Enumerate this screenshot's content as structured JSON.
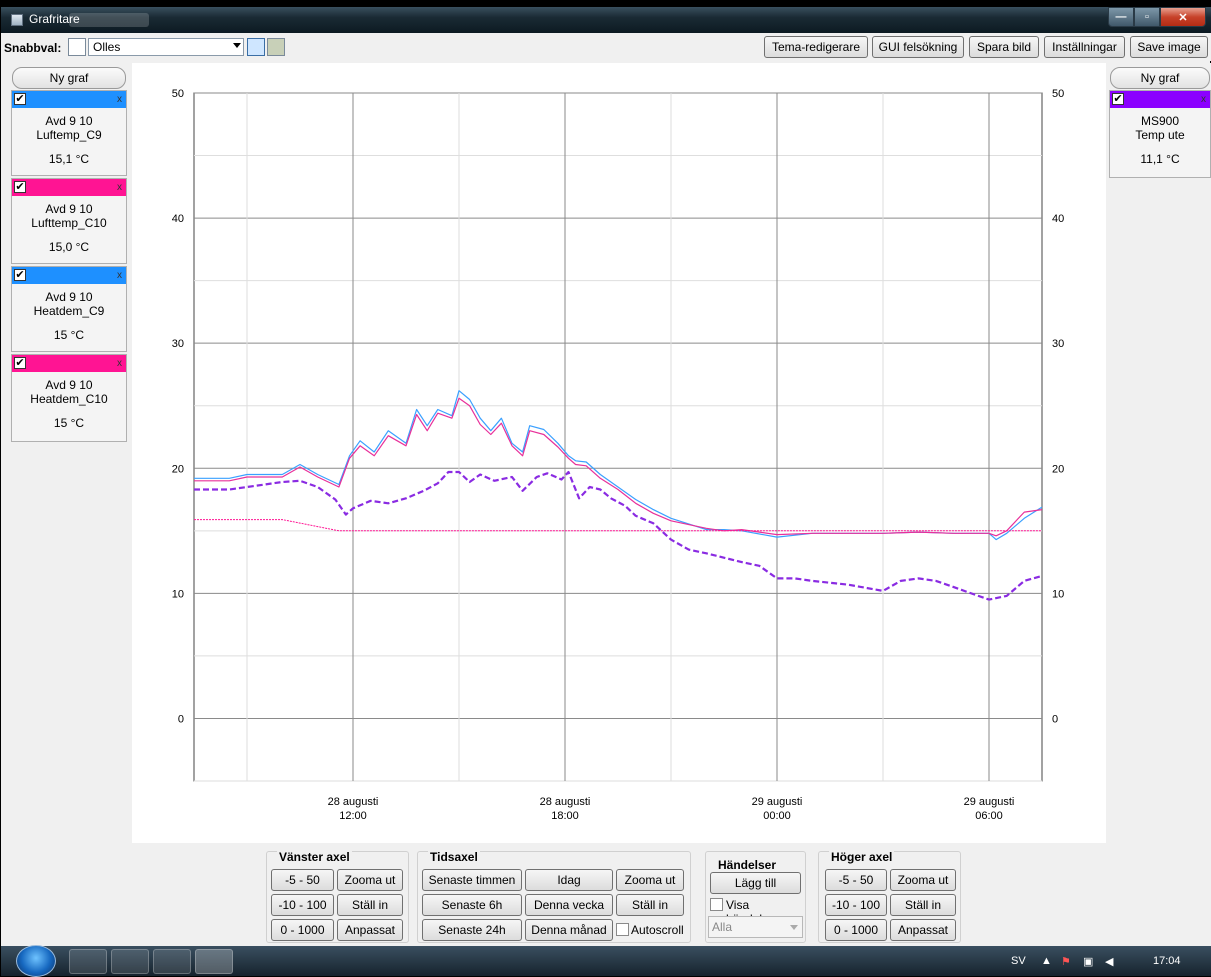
{
  "window": {
    "title": "Grafritare"
  },
  "toolbar": {
    "quick_label": "Snabbval:",
    "quick_selected": "Olles",
    "buttons": [
      "Tema-redigerare",
      "GUI felsökning",
      "Spara bild",
      "Inställningar",
      "Save image"
    ]
  },
  "left_panel": {
    "new_graph": "Ny graf",
    "cards": [
      {
        "line1": "Avd 9 10",
        "line2": "Luftemp_C9",
        "value": "15,1 °C",
        "color": "#1e90ff"
      },
      {
        "line1": "Avd 9 10",
        "line2": "Lufttemp_C10",
        "value": "15,0 °C",
        "color": "#ff1493"
      },
      {
        "line1": "Avd 9 10",
        "line2": "Heatdem_C9",
        "value": "15 °C",
        "color": "#1e90ff"
      },
      {
        "line1": "Avd 9 10",
        "line2": "Heatdem_C10",
        "value": "15 °C",
        "color": "#ff1493"
      }
    ]
  },
  "right_panel": {
    "new_graph": "Ny graf",
    "cards": [
      {
        "line1": "MS900",
        "line2": "Temp ute",
        "value": "11,1 °C",
        "color": "#8b00ff"
      }
    ]
  },
  "chart_data": {
    "type": "line",
    "ylim": [
      -5,
      50
    ],
    "yticks": [
      0,
      10,
      20,
      30,
      40,
      50
    ],
    "xlim_hours": [
      7.5,
      31.5
    ],
    "xticks": [
      {
        "h": 12,
        "date": "28 augusti",
        "time": "12:00"
      },
      {
        "h": 18,
        "date": "28 augusti",
        "time": "18:00"
      },
      {
        "h": 24,
        "date": "29 augusti",
        "time": "00:00"
      },
      {
        "h": 30,
        "date": "29 augusti",
        "time": "06:00"
      }
    ],
    "grid": true,
    "series": [
      {
        "color": "#3aa0ff",
        "dash": false,
        "points": [
          [
            7.5,
            19.2
          ],
          [
            8.5,
            19.2
          ],
          [
            9,
            19.5
          ],
          [
            10,
            19.5
          ],
          [
            10.5,
            20.3
          ],
          [
            11,
            19.5
          ],
          [
            11.6,
            18.7
          ],
          [
            11.9,
            21
          ],
          [
            12.2,
            22.2
          ],
          [
            12.6,
            21.3
          ],
          [
            13,
            23
          ],
          [
            13.5,
            22
          ],
          [
            13.8,
            24.7
          ],
          [
            14.1,
            23.4
          ],
          [
            14.4,
            24.7
          ],
          [
            14.8,
            24.2
          ],
          [
            15,
            26.2
          ],
          [
            15.3,
            25.5
          ],
          [
            15.6,
            24
          ],
          [
            15.9,
            23
          ],
          [
            16.2,
            24
          ],
          [
            16.5,
            22
          ],
          [
            16.8,
            21.3
          ],
          [
            17,
            23.4
          ],
          [
            17.4,
            23.1
          ],
          [
            17.8,
            22
          ],
          [
            18.1,
            21
          ],
          [
            18.3,
            20.6
          ],
          [
            18.6,
            20.5
          ],
          [
            19,
            19.5
          ],
          [
            19.5,
            18.5
          ],
          [
            20,
            17.5
          ],
          [
            20.5,
            16.7
          ],
          [
            21,
            16
          ],
          [
            22,
            15.1
          ],
          [
            22.5,
            15.1
          ],
          [
            23,
            15
          ],
          [
            24,
            14.5
          ],
          [
            25,
            14.8
          ],
          [
            26,
            14.8
          ],
          [
            27,
            14.8
          ],
          [
            28,
            14.9
          ],
          [
            29,
            14.8
          ],
          [
            30,
            14.8
          ],
          [
            30.2,
            14.3
          ],
          [
            30.5,
            14.8
          ],
          [
            31,
            16
          ],
          [
            31.5,
            16.9
          ]
        ]
      },
      {
        "color": "#e8309a",
        "dash": false,
        "points": [
          [
            7.5,
            19
          ],
          [
            8.5,
            19
          ],
          [
            9,
            19.3
          ],
          [
            10,
            19.3
          ],
          [
            10.5,
            20.1
          ],
          [
            11,
            19.3
          ],
          [
            11.6,
            18.5
          ],
          [
            11.9,
            20.8
          ],
          [
            12.2,
            21.8
          ],
          [
            12.6,
            21
          ],
          [
            13,
            22.6
          ],
          [
            13.5,
            21.8
          ],
          [
            13.8,
            24.3
          ],
          [
            14.1,
            23
          ],
          [
            14.4,
            24.4
          ],
          [
            14.8,
            24
          ],
          [
            15,
            25.6
          ],
          [
            15.3,
            25
          ],
          [
            15.6,
            23.5
          ],
          [
            15.9,
            22.7
          ],
          [
            16.2,
            23.6
          ],
          [
            16.5,
            21.8
          ],
          [
            16.8,
            21
          ],
          [
            17,
            23
          ],
          [
            17.4,
            22.7
          ],
          [
            17.8,
            21.7
          ],
          [
            18.1,
            20.8
          ],
          [
            18.3,
            20.3
          ],
          [
            18.6,
            20.2
          ],
          [
            19,
            19.2
          ],
          [
            19.5,
            18.3
          ],
          [
            20,
            17.2
          ],
          [
            20.5,
            16.4
          ],
          [
            21,
            15.8
          ],
          [
            22,
            15.2
          ],
          [
            22.5,
            15
          ],
          [
            23,
            15.1
          ],
          [
            24,
            14.7
          ],
          [
            25,
            14.8
          ],
          [
            26,
            14.8
          ],
          [
            27,
            14.8
          ],
          [
            28,
            14.9
          ],
          [
            29,
            14.8
          ],
          [
            30,
            14.8
          ],
          [
            30.2,
            14.6
          ],
          [
            30.5,
            15
          ],
          [
            31,
            16.5
          ],
          [
            31.5,
            16.7
          ]
        ]
      },
      {
        "color": "#ff1493",
        "dash": "thin",
        "points": [
          [
            7.5,
            15.9
          ],
          [
            10,
            15.9
          ],
          [
            11.6,
            15
          ],
          [
            31.5,
            15
          ]
        ]
      },
      {
        "color": "#8a2be2",
        "dash": "thick",
        "points": [
          [
            7.5,
            18.3
          ],
          [
            8.5,
            18.3
          ],
          [
            9,
            18.5
          ],
          [
            10,
            18.9
          ],
          [
            10.5,
            19
          ],
          [
            11,
            18.5
          ],
          [
            11.5,
            17.5
          ],
          [
            11.8,
            16.3
          ],
          [
            12,
            16.8
          ],
          [
            12.5,
            17.4
          ],
          [
            13,
            17.2
          ],
          [
            13.5,
            17.6
          ],
          [
            14,
            18.2
          ],
          [
            14.4,
            18.8
          ],
          [
            14.7,
            19.7
          ],
          [
            15,
            19.7
          ],
          [
            15.3,
            18.9
          ],
          [
            15.6,
            19.5
          ],
          [
            16,
            19
          ],
          [
            16.5,
            19.3
          ],
          [
            16.8,
            18.2
          ],
          [
            17.2,
            19.3
          ],
          [
            17.5,
            19.6
          ],
          [
            17.9,
            19.1
          ],
          [
            18.1,
            19.7
          ],
          [
            18.4,
            17.6
          ],
          [
            18.7,
            18.5
          ],
          [
            19,
            18.3
          ],
          [
            19.3,
            17.6
          ],
          [
            19.7,
            17
          ],
          [
            20,
            16.2
          ],
          [
            20.5,
            15.6
          ],
          [
            21,
            14.3
          ],
          [
            21.5,
            13.5
          ],
          [
            22,
            13.2
          ],
          [
            23,
            12.5
          ],
          [
            23.5,
            12.2
          ],
          [
            24,
            11.2
          ],
          [
            24.5,
            11.2
          ],
          [
            25,
            11
          ],
          [
            26,
            10.7
          ],
          [
            27,
            10.2
          ],
          [
            27.5,
            11
          ],
          [
            28,
            11.2
          ],
          [
            28.5,
            11
          ],
          [
            29,
            10.5
          ],
          [
            29.5,
            10
          ],
          [
            30,
            9.5
          ],
          [
            30.5,
            9.8
          ],
          [
            31,
            11
          ],
          [
            31.5,
            11.4
          ]
        ]
      }
    ]
  },
  "bottom": {
    "left_axis": {
      "title": "Vänster axel",
      "buttons": [
        "-5 - 50",
        "Zooma ut",
        "-10 - 100",
        "Ställ in",
        "0 - 1000",
        "Anpassat"
      ]
    },
    "time_axis": {
      "title": "Tidsaxel",
      "buttons": [
        "Senaste timmen",
        "Idag",
        "Zooma ut",
        "Senaste 6h",
        "Denna vecka",
        "Ställ in",
        "Senaste 24h",
        "Denna månad"
      ],
      "autoscroll": "Autoscroll"
    },
    "events": {
      "title": "Händelser",
      "add": "Lägg till",
      "show": "Visa händelser",
      "filter": "Alla"
    },
    "right_axis": {
      "title": "Höger axel",
      "buttons": [
        "-5 - 50",
        "Zooma ut",
        "-10 - 100",
        "Ställ in",
        "0 - 1000",
        "Anpassat"
      ]
    }
  },
  "taskbar": {
    "lang": "SV",
    "clock": "17:04"
  }
}
